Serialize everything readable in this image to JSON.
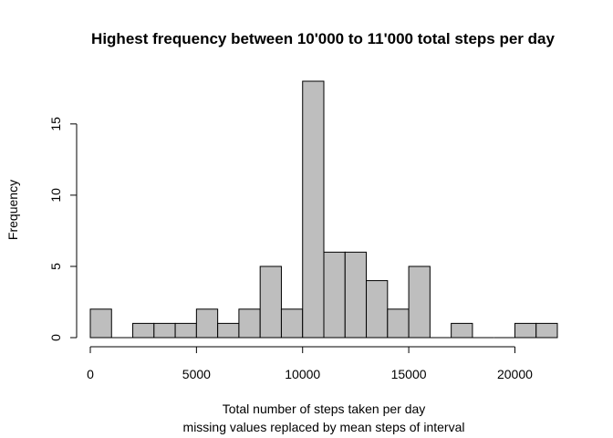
{
  "chart_data": {
    "type": "bar",
    "title": "Highest frequency between 10'000 to 11'000 total steps per day",
    "xlabel": "Total number of steps taken per day",
    "xlabel_line2": "missing values replaced by mean steps of interval",
    "ylabel": "Frequency",
    "bin_width": 1000,
    "bins": [
      {
        "start": 0,
        "end": 1000,
        "count": 2
      },
      {
        "start": 1000,
        "end": 2000,
        "count": 0
      },
      {
        "start": 2000,
        "end": 3000,
        "count": 1
      },
      {
        "start": 3000,
        "end": 4000,
        "count": 1
      },
      {
        "start": 4000,
        "end": 5000,
        "count": 1
      },
      {
        "start": 5000,
        "end": 6000,
        "count": 2
      },
      {
        "start": 6000,
        "end": 7000,
        "count": 1
      },
      {
        "start": 7000,
        "end": 8000,
        "count": 2
      },
      {
        "start": 8000,
        "end": 9000,
        "count": 5
      },
      {
        "start": 9000,
        "end": 10000,
        "count": 2
      },
      {
        "start": 10000,
        "end": 11000,
        "count": 18
      },
      {
        "start": 11000,
        "end": 12000,
        "count": 6
      },
      {
        "start": 12000,
        "end": 13000,
        "count": 6
      },
      {
        "start": 13000,
        "end": 14000,
        "count": 4
      },
      {
        "start": 14000,
        "end": 15000,
        "count": 2
      },
      {
        "start": 15000,
        "end": 16000,
        "count": 5
      },
      {
        "start": 16000,
        "end": 17000,
        "count": 0
      },
      {
        "start": 17000,
        "end": 18000,
        "count": 1
      },
      {
        "start": 18000,
        "end": 19000,
        "count": 0
      },
      {
        "start": 19000,
        "end": 20000,
        "count": 0
      },
      {
        "start": 20000,
        "end": 21000,
        "count": 1
      },
      {
        "start": 21000,
        "end": 22000,
        "count": 1
      }
    ],
    "xlim": [
      0,
      22000
    ],
    "ylim": [
      0,
      18
    ],
    "x_ticks": [
      0,
      5000,
      10000,
      15000,
      20000
    ],
    "y_ticks": [
      0,
      5,
      10,
      15
    ],
    "grid": false,
    "legend": "none",
    "bar_color": "#bebebe"
  }
}
